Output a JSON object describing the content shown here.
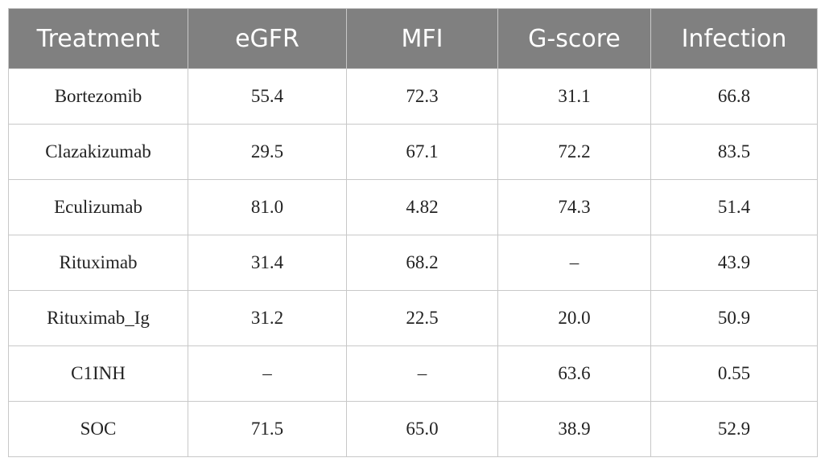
{
  "table": {
    "header": [
      "Treatment",
      "eGFR",
      "MFI",
      "G-score",
      "Infection"
    ],
    "rows": [
      [
        "Bortezomib",
        "55.4",
        "72.3",
        "31.1",
        "66.8"
      ],
      [
        "Clazakizumab",
        "29.5",
        "67.1",
        "72.2",
        "83.5"
      ],
      [
        "Eculizumab",
        "81.0",
        "4.82",
        "74.3",
        "51.4"
      ],
      [
        "Rituximab",
        "31.4",
        "68.2",
        "–",
        "43.9"
      ],
      [
        "Rituximab_Ig",
        "31.2",
        "22.5",
        "20.0",
        "50.9"
      ],
      [
        "C1INH",
        "–",
        "–",
        "63.6",
        "0.55"
      ],
      [
        "SOC",
        "71.5",
        "65.0",
        "38.9",
        "52.9"
      ]
    ]
  }
}
